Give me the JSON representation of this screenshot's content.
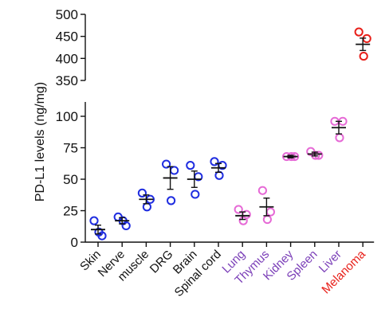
{
  "chart_data": {
    "type": "scatter",
    "ylabel": "PD-L1 levels (ng/mg)",
    "y_axis_break": true,
    "ylim_lower": [
      0,
      110
    ],
    "ylim_upper": [
      350,
      500
    ],
    "yticks_lower": [
      0,
      25,
      50,
      75,
      100
    ],
    "yticks_upper": [
      350,
      400,
      450,
      500
    ],
    "grid": false,
    "legend": false,
    "categories": [
      "Skin",
      "Nerve",
      "muscle",
      "DRG",
      "Brain",
      "Spinal cord",
      "Lung",
      "Thymus",
      "Kidney",
      "Spleen",
      "Liver",
      "Melanoma"
    ],
    "category_colors": [
      "#111111",
      "#111111",
      "#111111",
      "#111111",
      "#111111",
      "#111111",
      "#7b3fb8",
      "#7b3fb8",
      "#7b3fb8",
      "#7b3fb8",
      "#7b3fb8",
      "#e8201a"
    ],
    "marker_colors": [
      "#1f2de0",
      "#1f2de0",
      "#1f2de0",
      "#1f2de0",
      "#1f2de0",
      "#1f2de0",
      "#e66ad6",
      "#e66ad6",
      "#e66ad6",
      "#e66ad6",
      "#e66ad6",
      "#e8201a"
    ],
    "mean_bar_color": "#111111",
    "series": [
      {
        "category": "Skin",
        "points": [
          17,
          5,
          8
        ],
        "mean": 10,
        "sem": 3.5
      },
      {
        "category": "Nerve",
        "points": [
          20,
          13,
          17
        ],
        "mean": 17,
        "sem": 2.5
      },
      {
        "category": "muscle",
        "points": [
          39,
          34,
          28
        ],
        "mean": 34,
        "sem": 3.5
      },
      {
        "category": "DRG",
        "points": [
          62,
          57,
          33
        ],
        "mean": 51,
        "sem": 9
      },
      {
        "category": "Brain",
        "points": [
          61,
          52,
          38
        ],
        "mean": 50,
        "sem": 6.5
      },
      {
        "category": "Spinal cord",
        "points": [
          64,
          61,
          53
        ],
        "mean": 59,
        "sem": 3.5
      },
      {
        "category": "Lung",
        "points": [
          26,
          22,
          17
        ],
        "mean": 21,
        "sem": 3
      },
      {
        "category": "Thymus",
        "points": [
          41,
          24,
          18
        ],
        "mean": 28,
        "sem": 7
      },
      {
        "category": "Kidney",
        "points": [
          68,
          68,
          68
        ],
        "mean": 68,
        "sem": 1
      },
      {
        "category": "Spleen",
        "points": [
          72,
          69,
          69
        ],
        "mean": 70,
        "sem": 1.5
      },
      {
        "category": "Liver",
        "points": [
          96,
          96,
          83
        ],
        "mean": 91,
        "sem": 5
      },
      {
        "category": "Melanoma",
        "points": [
          460,
          445,
          405
        ],
        "mean": 432,
        "sem": 14
      }
    ]
  }
}
